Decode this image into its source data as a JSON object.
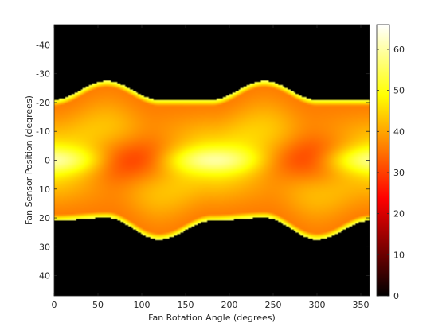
{
  "chart_data": {
    "type": "heatmap",
    "title": "",
    "xlabel": "Fan Rotation Angle (degrees)",
    "ylabel": "Fan Sensor Position (degrees)",
    "xlim": [
      0,
      360
    ],
    "ylim": [
      -47,
      47
    ],
    "y_direction": "reverse",
    "xticks": [
      0,
      50,
      100,
      150,
      200,
      250,
      300,
      350
    ],
    "yticks": [
      -40,
      -30,
      -20,
      -10,
      0,
      10,
      20,
      30,
      40
    ],
    "colormap": "hot",
    "colorbar": {
      "range": [
        0,
        66
      ],
      "ticks": [
        0,
        10,
        20,
        30,
        40,
        50,
        60
      ]
    },
    "background_color": "#000000",
    "support_boundary": {
      "upper_edge": {
        "x": [
          0,
          60,
          120,
          180,
          240,
          300,
          360
        ],
        "y": [
          -21,
          -27.5,
          -21,
          -21,
          -27.5,
          -21,
          -21
        ]
      },
      "lower_edge": {
        "x": [
          0,
          60,
          120,
          180,
          240,
          300,
          360
        ],
        "y": [
          21,
          20,
          27.5,
          21,
          20,
          27.5,
          21
        ]
      }
    },
    "features": [
      {
        "description": "bright band near y=0",
        "x": [
          0,
          180,
          360
        ],
        "y": [
          0,
          0,
          0
        ],
        "value": 55
      },
      {
        "description": "dark red lobe",
        "x": 90,
        "y": 0,
        "value": 30
      },
      {
        "description": "dark red lobe",
        "x": 290,
        "y": 0,
        "value": 30
      }
    ]
  }
}
